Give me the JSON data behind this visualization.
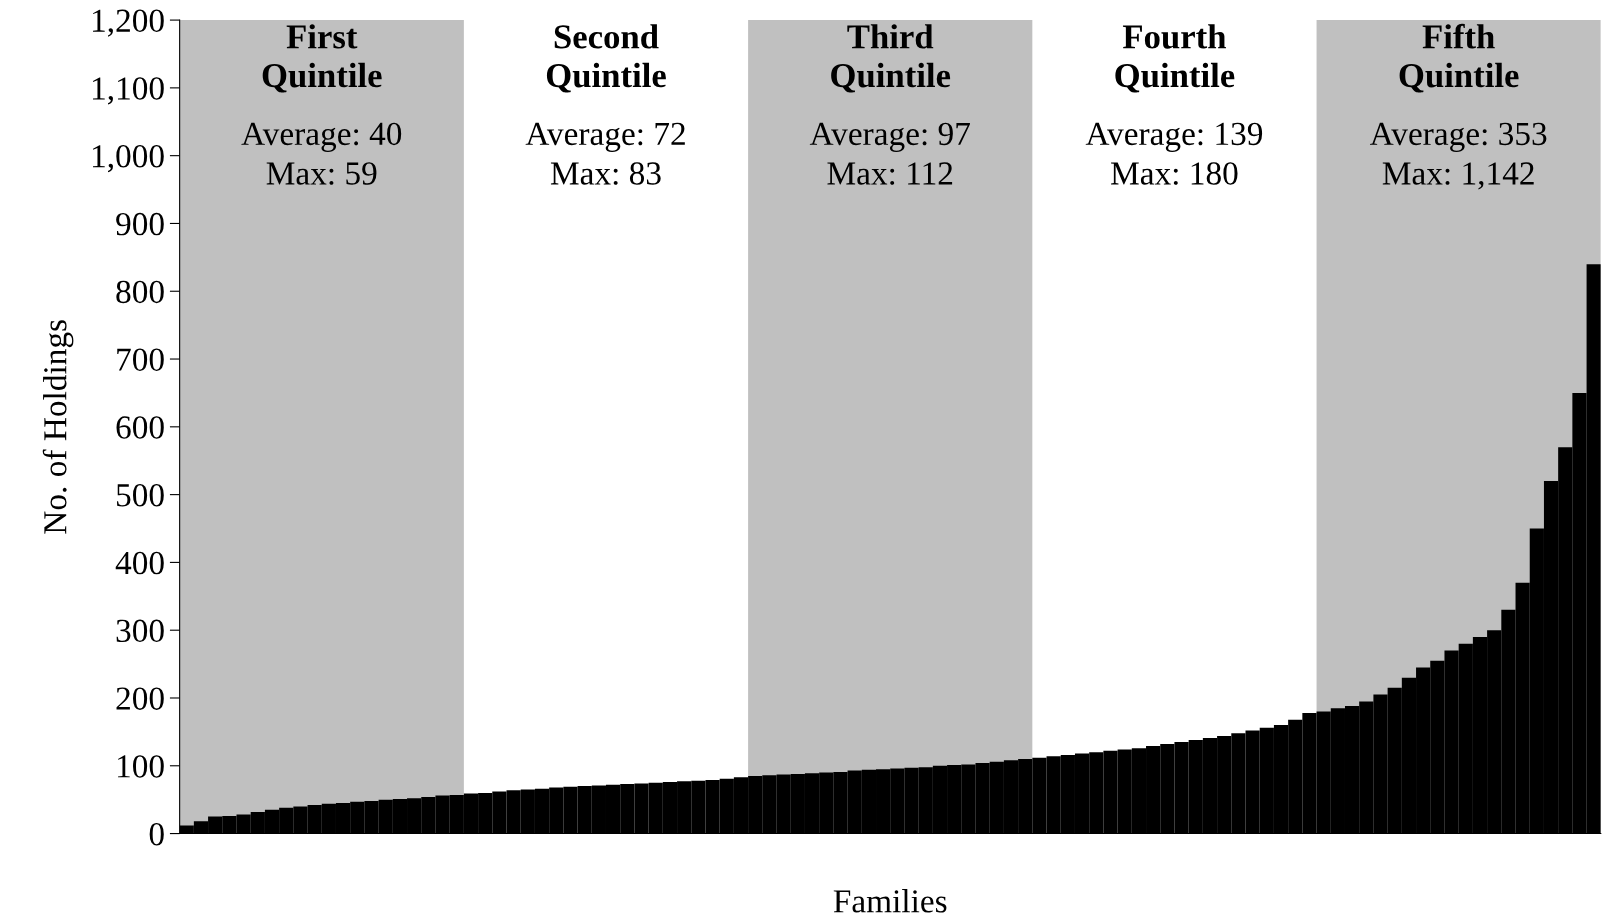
{
  "chart_data": {
    "type": "bar",
    "xlabel": "Families",
    "ylabel": "No. of Holdings",
    "categories": [
      null,
      null,
      null,
      null,
      null,
      null,
      null,
      null,
      null,
      null,
      null,
      null,
      null,
      null,
      null,
      null,
      null,
      null,
      null,
      null,
      null,
      null,
      null,
      null,
      null,
      null,
      null,
      null,
      null,
      null,
      null,
      null,
      null,
      null,
      null,
      null,
      null,
      null,
      null,
      null,
      null,
      null,
      null,
      null,
      null,
      null,
      null,
      null,
      null,
      null,
      null,
      null,
      null,
      null,
      null,
      null,
      null,
      null,
      null,
      null,
      null,
      null,
      null,
      null,
      null,
      null,
      null,
      null,
      null,
      null,
      null,
      null,
      null,
      null,
      null,
      null,
      null,
      null,
      null,
      null,
      null,
      null,
      null,
      null,
      null,
      null,
      null,
      null,
      null,
      null,
      null,
      null,
      null,
      null,
      null,
      null,
      null,
      null,
      null,
      null
    ],
    "values": [
      12,
      18,
      25,
      26,
      28,
      32,
      35,
      38,
      40,
      42,
      44,
      45,
      47,
      48,
      50,
      51,
      52,
      54,
      56,
      57,
      59,
      60,
      62,
      64,
      65,
      66,
      68,
      69,
      70,
      71,
      72,
      73,
      74,
      75,
      76,
      77,
      78,
      79,
      81,
      83,
      85,
      86,
      87,
      88,
      89,
      90,
      91,
      93,
      94,
      95,
      96,
      97,
      98,
      100,
      101,
      102,
      104,
      106,
      108,
      110,
      112,
      114,
      116,
      118,
      120,
      122,
      124,
      126,
      129,
      132,
      135,
      138,
      141,
      144,
      148,
      152,
      156,
      160,
      168,
      178,
      180,
      185,
      188,
      195,
      205,
      215,
      230,
      245,
      255,
      270,
      280,
      290,
      300,
      330,
      370,
      450,
      520,
      570,
      650,
      840
    ],
    "color": "#000000",
    "ylim": [
      0,
      1200
    ],
    "yticks": [
      0,
      100,
      200,
      300,
      400,
      500,
      600,
      700,
      800,
      900,
      {
        "value": 1000,
        "label": "1,000"
      },
      {
        "value": 1100,
        "label": "1,100"
      },
      {
        "value": 1200,
        "label": "1,200"
      }
    ],
    "tick_labels": "y",
    "grid": false,
    "legend": false,
    "annotations": [
      "First\nQuintile",
      "Average: 40\nMax: 59",
      "Second\nQuintile",
      "Average: 72\nMax: 83",
      "Third\nQuintile",
      "Average: 97\nMax: 112",
      "Fourth\nQuintile",
      "Average: 139\nMax: 180",
      "Fifth\nQuintile",
      "Average: 353\nMax: 1,142"
    ]
  }
}
